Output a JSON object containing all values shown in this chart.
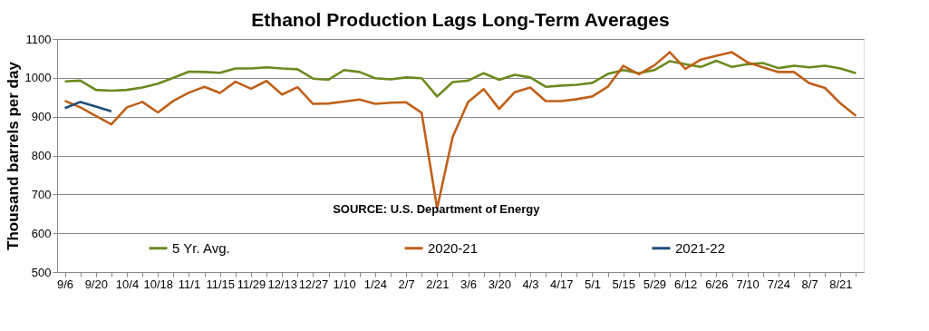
{
  "chart_data": {
    "type": "line",
    "title": "Ethanol Production Lags Long-Term Averages",
    "ylabel": "Thousand barrels per day",
    "categories": [
      "9/6",
      null,
      "9/20",
      null,
      "10/4",
      null,
      "10/18",
      null,
      "11/1",
      null,
      "11/15",
      null,
      "11/29",
      null,
      "12/13",
      null,
      "12/27",
      null,
      "1/10",
      null,
      "1/24",
      null,
      "2/7",
      null,
      "2/21",
      null,
      "3/6",
      null,
      "3/20",
      null,
      "4/3",
      null,
      "4/17",
      null,
      "5/1",
      null,
      "5/15",
      null,
      "5/29",
      null,
      "6/12",
      null,
      "6/26",
      null,
      "7/10",
      null,
      "7/24",
      null,
      "8/7",
      null,
      "8/21",
      null
    ],
    "series": [
      {
        "name": "5 Yr. Avg.",
        "color": "#6b8a1f",
        "values": [
          991,
          993,
          969,
          967,
          969,
          975,
          985,
          1000,
          1016,
          1015,
          1013,
          1024,
          1024,
          1027,
          1024,
          1022,
          998,
          995,
          1020,
          1015,
          999,
          996,
          1001,
          999,
          952,
          989,
          993,
          1012,
          995,
          1008,
          1001,
          977,
          980,
          982,
          987,
          1010,
          1020,
          1012,
          1020,
          1043,
          1035,
          1028,
          1044,
          1028,
          1035,
          1038,
          1025,
          1031,
          1027,
          1031,
          1024,
          1012
        ]
      },
      {
        "name": "2020-21",
        "color": "#c0601a",
        "values": [
          941,
          924,
          902,
          880,
          924,
          938,
          911,
          941,
          962,
          977,
          961,
          990,
          972,
          992,
          957,
          976,
          933,
          934,
          939,
          944,
          933,
          936,
          937,
          910,
          664,
          848,
          938,
          971,
          920,
          963,
          975,
          940,
          940,
          945,
          952,
          977,
          1031,
          1009,
          1032,
          1066,
          1023,
          1047,
          1057,
          1066,
          1040,
          1027,
          1015,
          1015,
          986,
          974,
          934,
          902
        ]
      },
      {
        "name": "2021-22",
        "color": "#1f4e79",
        "values": [
          922,
          938,
          926,
          914,
          null,
          null,
          null,
          null,
          null,
          null,
          null,
          null,
          null,
          null,
          null,
          null,
          null,
          null,
          null,
          null,
          null,
          null,
          null,
          null,
          null,
          null,
          null,
          null,
          null,
          null,
          null,
          null,
          null,
          null,
          null,
          null,
          null,
          null,
          null,
          null,
          null,
          null,
          null,
          null,
          null,
          null,
          null,
          null,
          null,
          null,
          null,
          null
        ]
      }
    ],
    "ylim": [
      500,
      1100
    ],
    "yticks": [
      500,
      600,
      700,
      800,
      900,
      1000,
      1100
    ],
    "grid": "y",
    "legend": "bottom",
    "marker": "none",
    "line_style": "solid",
    "annotations": [
      "SOURCE: U.S. Department of Energy"
    ]
  }
}
